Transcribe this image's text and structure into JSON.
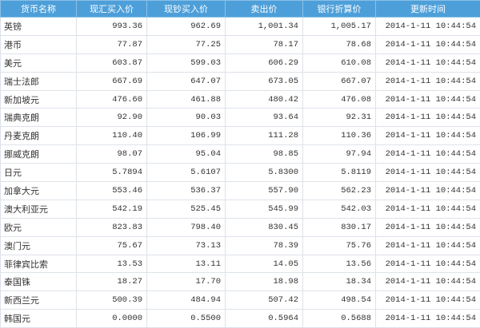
{
  "table": {
    "columns": [
      "货币名称",
      "现汇买入价",
      "现钞买入价",
      "卖出价",
      "银行折算价",
      "更新时间"
    ],
    "rows": [
      [
        "英镑",
        "993.36",
        "962.69",
        "1,001.34",
        "1,005.17",
        "2014-1-11 10:44:54"
      ],
      [
        "港币",
        "77.87",
        "77.25",
        "78.17",
        "78.68",
        "2014-1-11 10:44:54"
      ],
      [
        "美元",
        "603.87",
        "599.03",
        "606.29",
        "610.08",
        "2014-1-11 10:44:54"
      ],
      [
        "瑞士法郎",
        "667.69",
        "647.07",
        "673.05",
        "667.07",
        "2014-1-11 10:44:54"
      ],
      [
        "新加坡元",
        "476.60",
        "461.88",
        "480.42",
        "476.08",
        "2014-1-11 10:44:54"
      ],
      [
        "瑞典克朗",
        "92.90",
        "90.03",
        "93.64",
        "92.31",
        "2014-1-11 10:44:54"
      ],
      [
        "丹麦克朗",
        "110.40",
        "106.99",
        "111.28",
        "110.36",
        "2014-1-11 10:44:54"
      ],
      [
        "挪威克朗",
        "98.07",
        "95.04",
        "98.85",
        "97.94",
        "2014-1-11 10:44:54"
      ],
      [
        "日元",
        "5.7894",
        "5.6107",
        "5.8300",
        "5.8119",
        "2014-1-11 10:44:54"
      ],
      [
        "加拿大元",
        "553.46",
        "536.37",
        "557.90",
        "562.23",
        "2014-1-11 10:44:54"
      ],
      [
        "澳大利亚元",
        "542.19",
        "525.45",
        "545.99",
        "542.03",
        "2014-1-11 10:44:54"
      ],
      [
        "欧元",
        "823.83",
        "798.40",
        "830.45",
        "830.17",
        "2014-1-11 10:44:54"
      ],
      [
        "澳门元",
        "75.67",
        "73.13",
        "78.39",
        "75.76",
        "2014-1-11 10:44:54"
      ],
      [
        "菲律宾比索",
        "13.53",
        "13.11",
        "14.05",
        "13.56",
        "2014-1-11 10:44:54"
      ],
      [
        "泰国铢",
        "18.27",
        "17.70",
        "18.98",
        "18.34",
        "2014-1-11 10:44:54"
      ],
      [
        "新西兰元",
        "500.39",
        "484.94",
        "507.42",
        "498.54",
        "2014-1-11 10:44:54"
      ],
      [
        "韩国元",
        "0.0000",
        "0.5500",
        "0.5964",
        "0.5688",
        "2014-1-11 10:44:54"
      ]
    ]
  }
}
